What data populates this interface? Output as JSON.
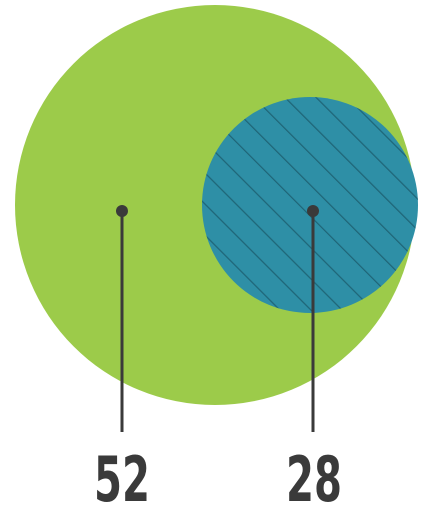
{
  "diagram": {
    "type": "nested-circles",
    "outer": {
      "value": "52",
      "color": "#9ccb4a"
    },
    "inner": {
      "value": "28",
      "color": "#2e8fa6",
      "pattern": "diagonal-hatch"
    },
    "line_color": "#3a3a3a"
  }
}
